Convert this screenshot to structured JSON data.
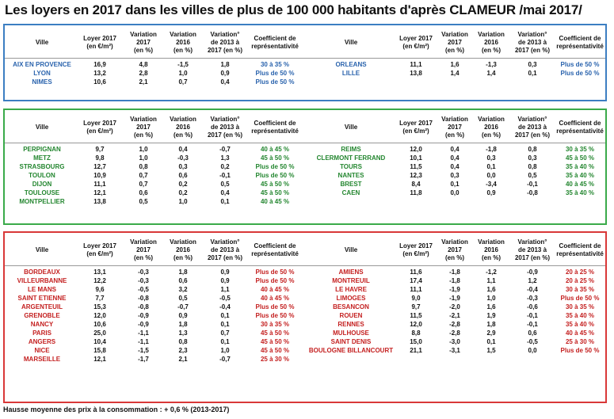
{
  "title": "Les loyers en 2017 dans les villes de plus de 100 000 habitants d'après CLAMEUR /mai 2017/",
  "headers_left": [
    "Ville",
    "Loyer 2017\n(en €/m²)",
    "Variation\n2017\n(en %)",
    "Variation\n2016\n(en %)",
    "Variation°\nde 2013 à\n2017 (en %)",
    "Coefficient de\nreprésentativité"
  ],
  "headers_right": [
    "Ville",
    "Loyer 2017\n(en €/m²)",
    "Variation\n2017\n(en %)",
    "Variation\n2016\n(en %)",
    "Variation°\nde 2013 à\n2017 (en %)",
    "Coefficient de\nreprésentativité"
  ],
  "sections": {
    "blue": {
      "left": [
        [
          "AIX EN PROVENCE",
          "16,9",
          "4,8",
          "-1,5",
          "1,8",
          "30 à 35 %"
        ],
        [
          "LYON",
          "13,2",
          "2,8",
          "1,0",
          "0,9",
          "Plus de 50 %"
        ],
        [
          "NIMES",
          "10,6",
          "2,1",
          "0,7",
          "0,4",
          "Plus de 50 %"
        ]
      ],
      "right": [
        [
          "ORLEANS",
          "11,1",
          "1,6",
          "-1,3",
          "0,3",
          "Plus de 50 %"
        ],
        [
          "LILLE",
          "13,8",
          "1,4",
          "1,4",
          "0,1",
          "Plus de 50 %"
        ]
      ]
    },
    "green": {
      "left": [
        [
          "PERPIGNAN",
          "9,7",
          "1,0",
          "0,4",
          "-0,7",
          "40 à 45 %"
        ],
        [
          "METZ",
          "9,8",
          "1,0",
          "-0,3",
          "1,3",
          "45 à 50 %"
        ],
        [
          "STRASBOURG",
          "12,7",
          "0,8",
          "0,3",
          "0,2",
          "Plus de 50 %"
        ],
        [
          "TOULON",
          "10,9",
          "0,7",
          "0,6",
          "-0,1",
          "Plus de 50 %"
        ],
        [
          "DIJON",
          "11,1",
          "0,7",
          "0,2",
          "0,5",
          "45 à 50 %"
        ],
        [
          "TOULOUSE",
          "12,1",
          "0,6",
          "0,2",
          "0,4",
          "45 à 50 %"
        ],
        [
          "MONTPELLIER",
          "13,8",
          "0,5",
          "1,0",
          "0,1",
          "40 à 45 %"
        ]
      ],
      "right": [
        [
          "REIMS",
          "12,0",
          "0,4",
          "-1,8",
          "0,8",
          "30 à 35 %"
        ],
        [
          "CLERMONT FERRAND",
          "10,1",
          "0,4",
          "0,3",
          "0,3",
          "45 à 50 %"
        ],
        [
          "TOURS",
          "11,5",
          "0,4",
          "0,1",
          "0,8",
          "35 à 40 %"
        ],
        [
          "NANTES",
          "12,3",
          "0,3",
          "0,0",
          "0,5",
          "35 à 40 %"
        ],
        [
          "BREST",
          "8,4",
          "0,1",
          "-3,4",
          "-0,1",
          "40 à 45 %"
        ],
        [
          "CAEN",
          "11,8",
          "0,0",
          "0,9",
          "-0,8",
          "35 à 40 %"
        ]
      ]
    },
    "red": {
      "left": [
        [
          "BORDEAUX",
          "13,1",
          "-0,3",
          "1,8",
          "0,9",
          "Plus de 50 %"
        ],
        [
          "VILLEURBANNE",
          "12,2",
          "-0,3",
          "0,6",
          "0,9",
          "Plus de 50 %"
        ],
        [
          "LE MANS",
          "9,6",
          "-0,5",
          "3,2",
          "1,1",
          "40 à 45 %"
        ],
        [
          "SAINT ETIENNE",
          "7,7",
          "-0,8",
          "0,5",
          "-0,5",
          "40 à 45 %"
        ],
        [
          "ARGENTEUIL",
          "15,3",
          "-0,8",
          "-0,7",
          "-0,4",
          "Plus de 50 %"
        ],
        [
          "GRENOBLE",
          "12,0",
          "-0,9",
          "0,9",
          "0,1",
          "Plus de 50 %"
        ],
        [
          "NANCY",
          "10,6",
          "-0,9",
          "1,8",
          "0,1",
          "30 à 35 %"
        ],
        [
          "PARIS",
          "25,0",
          "-1,1",
          "1,3",
          "0,7",
          "45 à 50 %"
        ],
        [
          "ANGERS",
          "10,4",
          "-1,1",
          "0,8",
          "0,1",
          "45 à 50 %"
        ],
        [
          "NICE",
          "15,8",
          "-1,5",
          "2,3",
          "1,0",
          "45 à 50 %"
        ],
        [
          "MARSEILLE",
          "12,1",
          "-1,7",
          "2,1",
          "-0,7",
          "25 à 30 %"
        ]
      ],
      "right": [
        [
          "AMIENS",
          "11,6",
          "-1,8",
          "-1,2",
          "-0,9",
          "20 à 25 %"
        ],
        [
          "MONTREUIL",
          "17,4",
          "-1,8",
          "1,1",
          "1,2",
          "20 à 25 %"
        ],
        [
          "LE HAVRE",
          "11,1",
          "-1,9",
          "1,6",
          "-0,4",
          "30 à 35 %"
        ],
        [
          "LIMOGES",
          "9,0",
          "-1,9",
          "1,0",
          "-0,3",
          "Plus de 50 %"
        ],
        [
          "BESANCON",
          "9,7",
          "-2,0",
          "1,6",
          "-0,6",
          "30 à 35 %"
        ],
        [
          "ROUEN",
          "11,5",
          "-2,1",
          "1,9",
          "-0,1",
          "35 à 40 %"
        ],
        [
          "RENNES",
          "12,0",
          "-2,8",
          "1,8",
          "-0,1",
          "35 à 40 %"
        ],
        [
          "MULHOUSE",
          "8,8",
          "-2,8",
          "2,9",
          "0,6",
          "40 à 45 %"
        ],
        [
          "SAINT DENIS",
          "15,0",
          "-3,0",
          "0,1",
          "-0,5",
          "25 à 30 %"
        ],
        [
          "BOULOGNE BILLANCOURT",
          "21,1",
          "-3,1",
          "1,5",
          "0,0",
          "Plus de 50 %"
        ]
      ]
    }
  },
  "footer": "Hausse moyenne des prix à la consommation : + 0,6 % (2013-2017)"
}
